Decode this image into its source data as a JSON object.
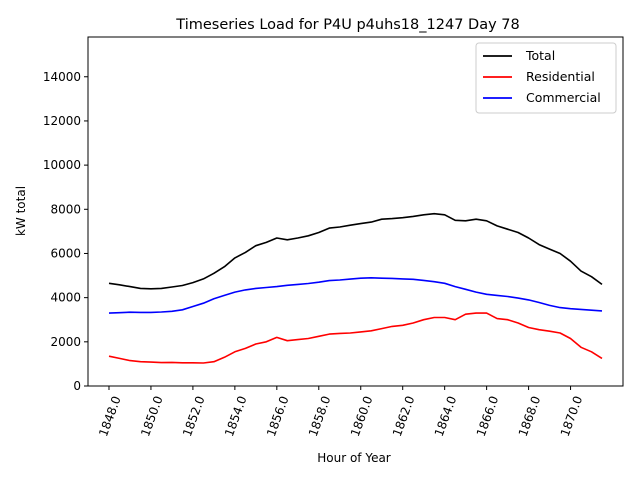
{
  "chart_data": {
    "type": "line",
    "title": "Timeseries Load for P4U p4uhs18_1247  Day 78",
    "xlabel": "Hour of Year",
    "ylabel": "kW total",
    "xlim": [
      1847.0,
      1872.5
    ],
    "ylim": [
      0,
      15800
    ],
    "x_ticks": [
      1848,
      1850,
      1852,
      1854,
      1856,
      1858,
      1860,
      1862,
      1864,
      1866,
      1868,
      1870
    ],
    "x_tick_labels": [
      "1848.0",
      "1850.0",
      "1852.0",
      "1854.0",
      "1856.0",
      "1858.0",
      "1860.0",
      "1862.0",
      "1864.0",
      "1866.0",
      "1868.0",
      "1870.0"
    ],
    "y_ticks": [
      0,
      2000,
      4000,
      6000,
      8000,
      10000,
      12000,
      14000
    ],
    "y_tick_labels": [
      "0",
      "2000",
      "4000",
      "6000",
      "8000",
      "10000",
      "12000",
      "14000"
    ],
    "legend_position": "top-right",
    "x": [
      1848.0,
      1848.5,
      1849.0,
      1849.5,
      1850.0,
      1850.5,
      1851.0,
      1851.5,
      1852.0,
      1852.5,
      1853.0,
      1853.5,
      1854.0,
      1854.5,
      1855.0,
      1855.5,
      1856.0,
      1856.5,
      1857.0,
      1857.5,
      1858.0,
      1858.5,
      1859.0,
      1859.5,
      1860.0,
      1860.5,
      1861.0,
      1861.5,
      1862.0,
      1862.5,
      1863.0,
      1863.5,
      1864.0,
      1864.5,
      1865.0,
      1865.5,
      1866.0,
      1866.5,
      1867.0,
      1867.5,
      1868.0,
      1868.5,
      1869.0,
      1869.5,
      1870.0,
      1870.5,
      1871.0,
      1871.5
    ],
    "series": [
      {
        "name": "Total",
        "color": "#000000",
        "values": [
          4650,
          4580,
          4500,
          4420,
          4400,
          4420,
          4480,
          4550,
          4680,
          4850,
          5100,
          5400,
          5800,
          6050,
          6350,
          6500,
          6700,
          6620,
          6700,
          6800,
          6950,
          7150,
          7200,
          7280,
          7350,
          7420,
          7550,
          7580,
          7620,
          7680,
          7750,
          7800,
          7750,
          7500,
          7480,
          7550,
          7480,
          7250,
          7100,
          6950,
          6700,
          6400,
          6200,
          6000,
          5650,
          5200,
          4950,
          4600
        ]
      },
      {
        "name": "Residential",
        "color": "#ff0000",
        "values": [
          1350,
          1250,
          1150,
          1100,
          1080,
          1060,
          1070,
          1050,
          1050,
          1040,
          1100,
          1300,
          1550,
          1700,
          1900,
          2000,
          2200,
          2050,
          2100,
          2150,
          2250,
          2350,
          2380,
          2400,
          2450,
          2500,
          2600,
          2700,
          2750,
          2850,
          3000,
          3100,
          3100,
          3000,
          3250,
          3300,
          3300,
          3050,
          3000,
          2850,
          2650,
          2550,
          2480,
          2400,
          2150,
          1750,
          1550,
          1250
        ]
      },
      {
        "name": "Commercial",
        "color": "#0000ff",
        "values": [
          3300,
          3320,
          3340,
          3330,
          3330,
          3350,
          3380,
          3450,
          3600,
          3750,
          3950,
          4100,
          4250,
          4350,
          4420,
          4460,
          4500,
          4560,
          4600,
          4640,
          4700,
          4770,
          4800,
          4840,
          4880,
          4900,
          4880,
          4870,
          4850,
          4830,
          4780,
          4720,
          4650,
          4500,
          4380,
          4250,
          4150,
          4100,
          4050,
          3980,
          3900,
          3780,
          3650,
          3550,
          3500,
          3470,
          3430,
          3400
        ]
      }
    ]
  }
}
